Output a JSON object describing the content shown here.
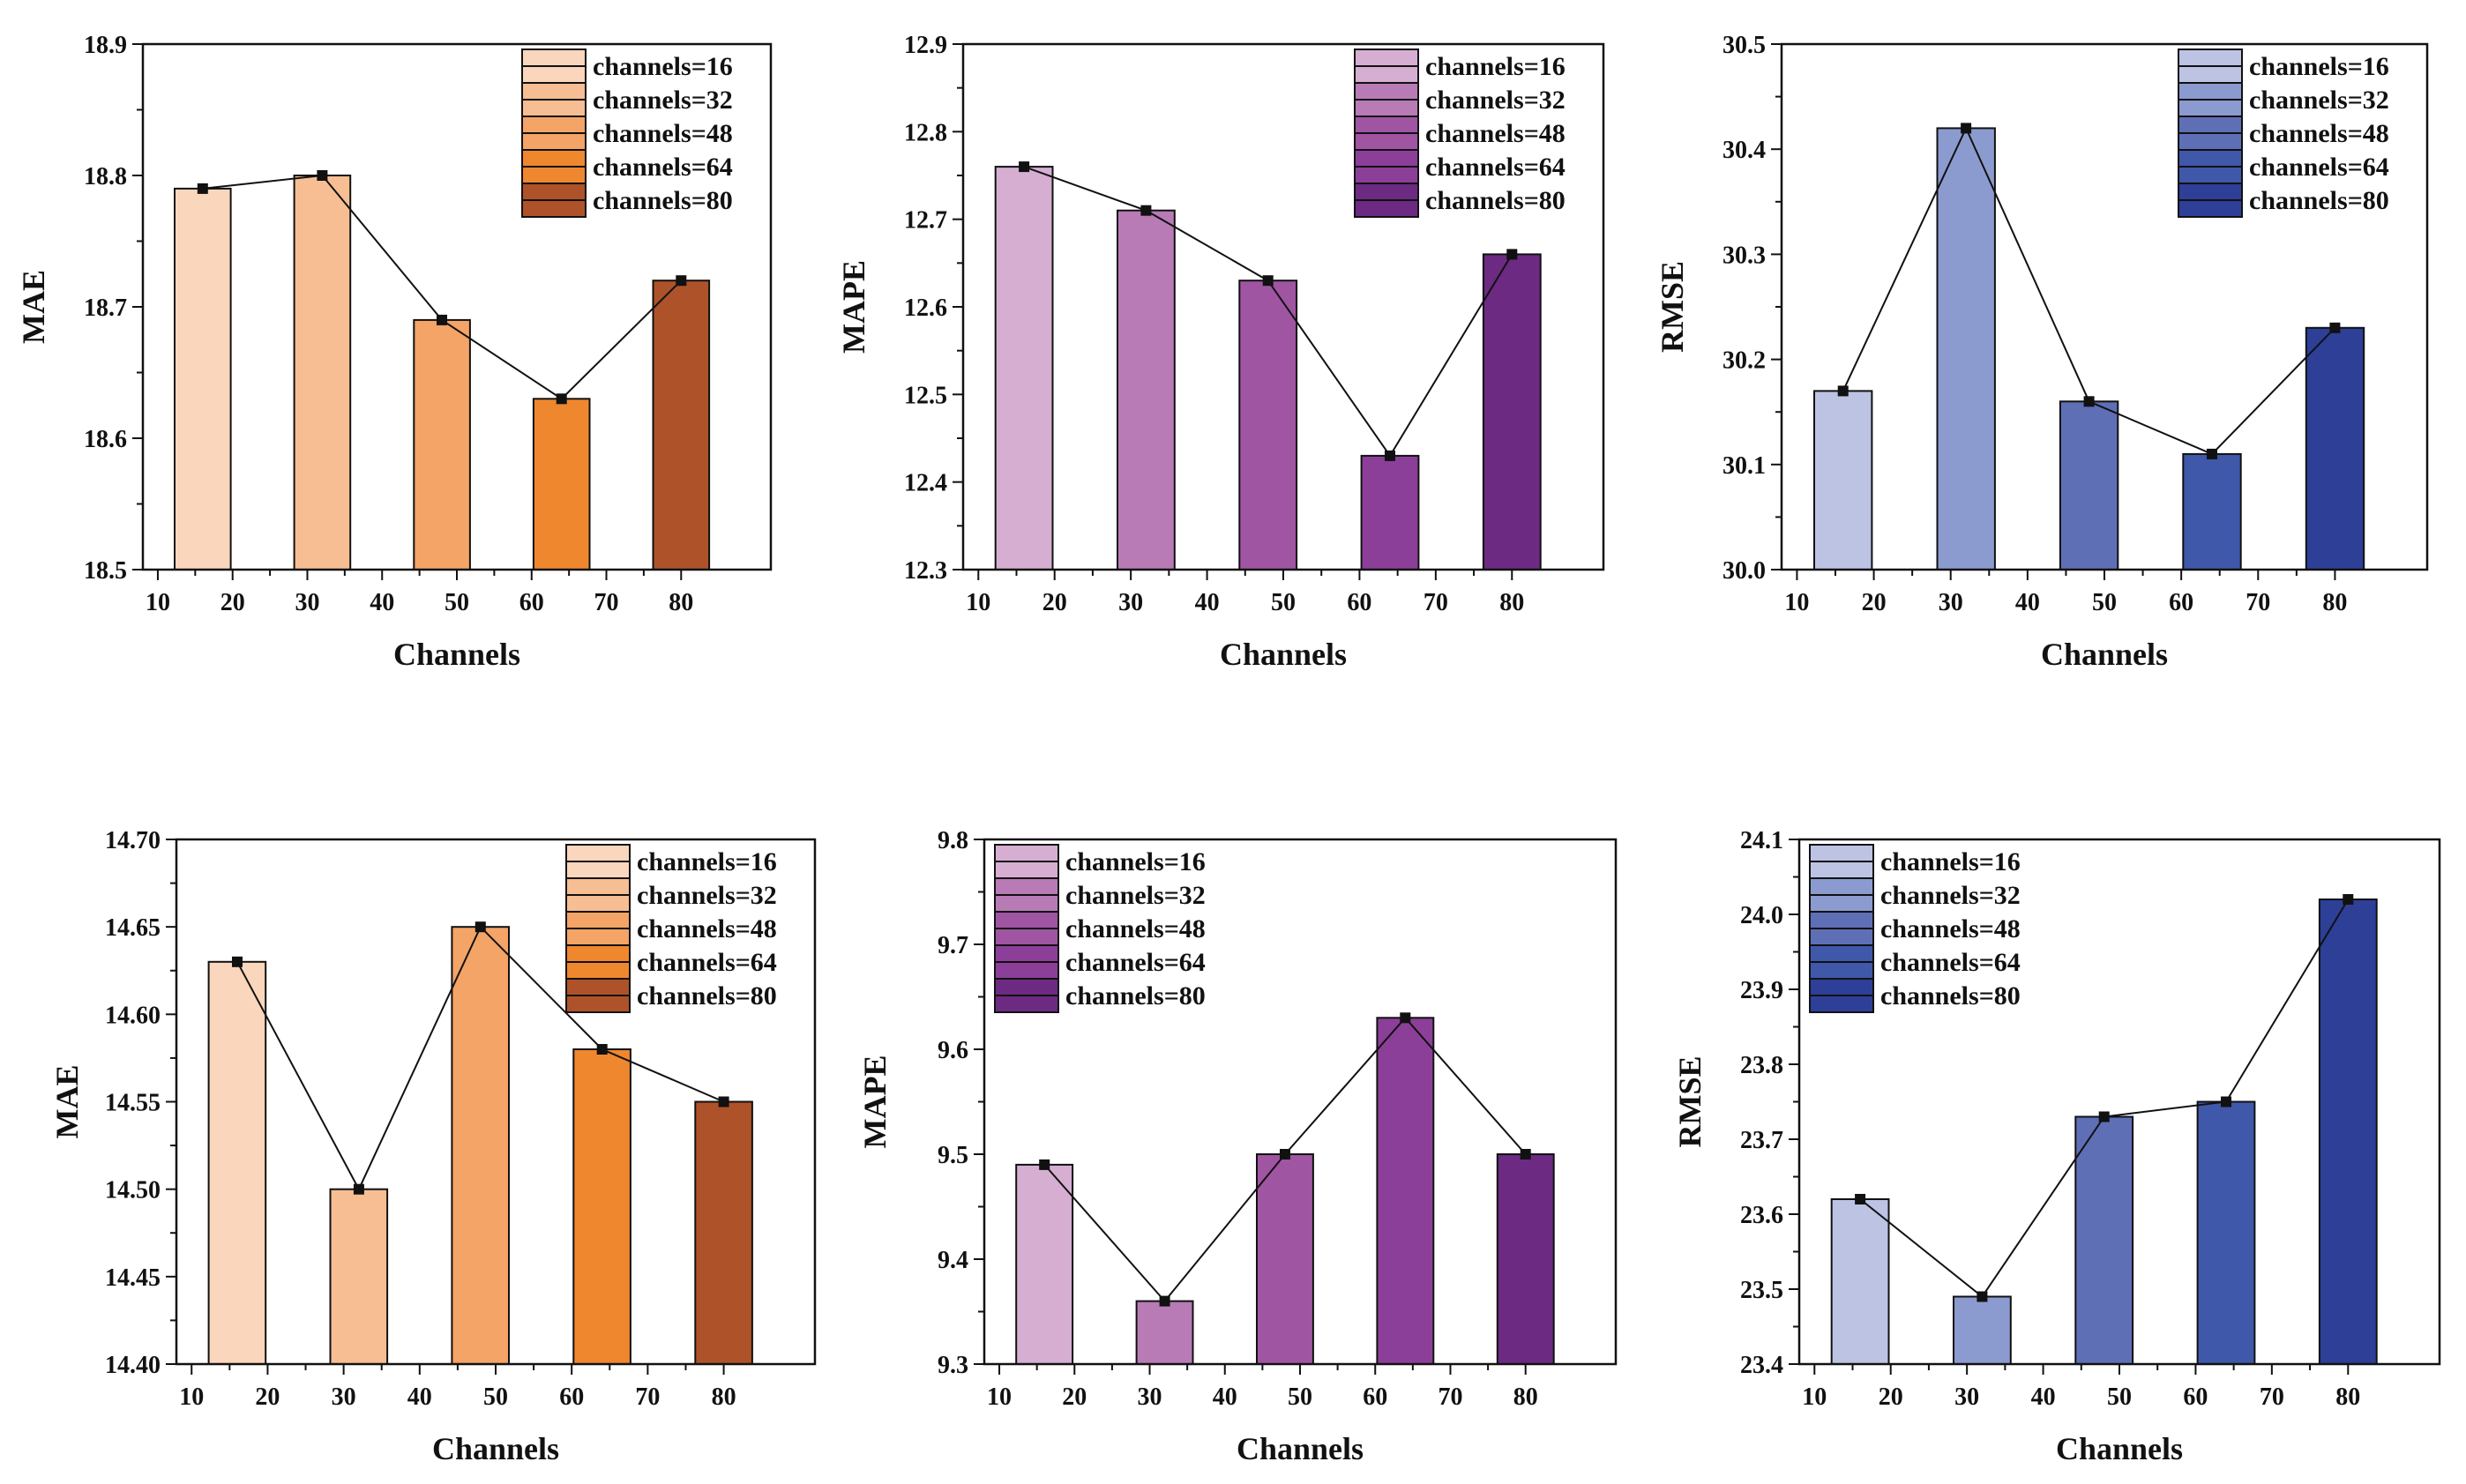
{
  "chart_data": [
    {
      "type": "bar",
      "palette": "orange",
      "xlabel": "Channels",
      "ylabel": "MAE",
      "x": [
        16,
        32,
        48,
        64,
        80
      ],
      "values": [
        18.79,
        18.8,
        18.69,
        18.63,
        18.72
      ],
      "xlim": [
        8,
        92
      ],
      "xticks": [
        10,
        20,
        30,
        40,
        50,
        60,
        70,
        80
      ],
      "ylim": [
        18.5,
        18.9
      ],
      "yticks": [
        "18.5",
        "18.6",
        "18.7",
        "18.8",
        "18.9"
      ],
      "legend_position": "top-right",
      "legend": [
        "channels=16",
        "channels=32",
        "channels=48",
        "channels=64",
        "channels=80"
      ],
      "colors": [
        "#FAD6BC",
        "#F6BE92",
        "#F3A466",
        "#EF872E",
        "#AE5329"
      ]
    },
    {
      "type": "bar",
      "palette": "purple",
      "xlabel": "Channels",
      "ylabel": "MAPE",
      "x": [
        16,
        32,
        48,
        64,
        80
      ],
      "values": [
        12.76,
        12.71,
        12.63,
        12.43,
        12.66
      ],
      "xlim": [
        8,
        92
      ],
      "xticks": [
        10,
        20,
        30,
        40,
        50,
        60,
        70,
        80
      ],
      "ylim": [
        12.3,
        12.9
      ],
      "yticks": [
        "12.3",
        "12.4",
        "12.5",
        "12.6",
        "12.7",
        "12.8",
        "12.9"
      ],
      "legend_position": "top-right",
      "legend": [
        "channels=16",
        "channels=32",
        "channels=48",
        "channels=64",
        "channels=80"
      ],
      "colors": [
        "#D5AED2",
        "#B87BB6",
        "#A055A2",
        "#8C3F98",
        "#6C2A82"
      ]
    },
    {
      "type": "bar",
      "palette": "blue",
      "xlabel": "Channels",
      "ylabel": "RMSE",
      "x": [
        16,
        32,
        48,
        64,
        80
      ],
      "values": [
        30.17,
        30.42,
        30.16,
        30.11,
        30.23
      ],
      "xlim": [
        8,
        92
      ],
      "xticks": [
        10,
        20,
        30,
        40,
        50,
        60,
        70,
        80
      ],
      "ylim": [
        30.0,
        30.5
      ],
      "yticks": [
        "30.0",
        "30.1",
        "30.2",
        "30.3",
        "30.4",
        "30.5"
      ],
      "legend_position": "top-right",
      "legend": [
        "channels=16",
        "channels=32",
        "channels=48",
        "channels=64",
        "channels=80"
      ],
      "colors": [
        "#BCC3E3",
        "#8C9BCF",
        "#5F6FB6",
        "#3F58A9",
        "#2D3F97"
      ]
    },
    {
      "type": "bar",
      "palette": "orange",
      "xlabel": "Channels",
      "ylabel": "MAE",
      "x": [
        16,
        32,
        48,
        64,
        80
      ],
      "values": [
        14.63,
        14.5,
        14.65,
        14.58,
        14.55
      ],
      "xlim": [
        8,
        92
      ],
      "xticks": [
        10,
        20,
        30,
        40,
        50,
        60,
        70,
        80
      ],
      "ylim": [
        14.4,
        14.7
      ],
      "yticks": [
        "14.40",
        "14.45",
        "14.50",
        "14.55",
        "14.60",
        "14.65",
        "14.70"
      ],
      "legend_position": "top-right",
      "legend": [
        "channels=16",
        "channels=32",
        "channels=48",
        "channels=64",
        "channels=80"
      ],
      "colors": [
        "#FAD6BC",
        "#F6BE92",
        "#F3A466",
        "#EF872E",
        "#AE5329"
      ]
    },
    {
      "type": "bar",
      "palette": "purple",
      "xlabel": "Channels",
      "ylabel": "MAPE",
      "x": [
        16,
        32,
        48,
        64,
        80
      ],
      "values": [
        9.49,
        9.36,
        9.5,
        9.63,
        9.5
      ],
      "xlim": [
        8,
        92
      ],
      "xticks": [
        10,
        20,
        30,
        40,
        50,
        60,
        70,
        80
      ],
      "ylim": [
        9.3,
        9.8
      ],
      "yticks": [
        "9.3",
        "9.4",
        "9.5",
        "9.6",
        "9.7",
        "9.8"
      ],
      "legend_position": "top-left",
      "legend": [
        "channels=16",
        "channels=32",
        "channels=48",
        "channels=64",
        "channels=80"
      ],
      "colors": [
        "#D5AED2",
        "#B87BB6",
        "#A055A2",
        "#8C3F98",
        "#6C2A82"
      ]
    },
    {
      "type": "bar",
      "palette": "blue",
      "xlabel": "Channels",
      "ylabel": "RMSE",
      "x": [
        16,
        32,
        48,
        64,
        80
      ],
      "values": [
        23.62,
        23.49,
        23.73,
        23.75,
        24.02
      ],
      "xlim": [
        8,
        92
      ],
      "xticks": [
        10,
        20,
        30,
        40,
        50,
        60,
        70,
        80
      ],
      "ylim": [
        23.4,
        24.1
      ],
      "yticks": [
        "23.4",
        "23.5",
        "23.6",
        "23.7",
        "23.8",
        "23.9",
        "24.0",
        "24.1"
      ],
      "legend_position": "top-left",
      "legend": [
        "channels=16",
        "channels=32",
        "channels=48",
        "channels=64",
        "channels=80"
      ],
      "colors": [
        "#BCC3E3",
        "#8C9BCF",
        "#5F6FB6",
        "#3F58A9",
        "#2D3F97"
      ]
    }
  ]
}
